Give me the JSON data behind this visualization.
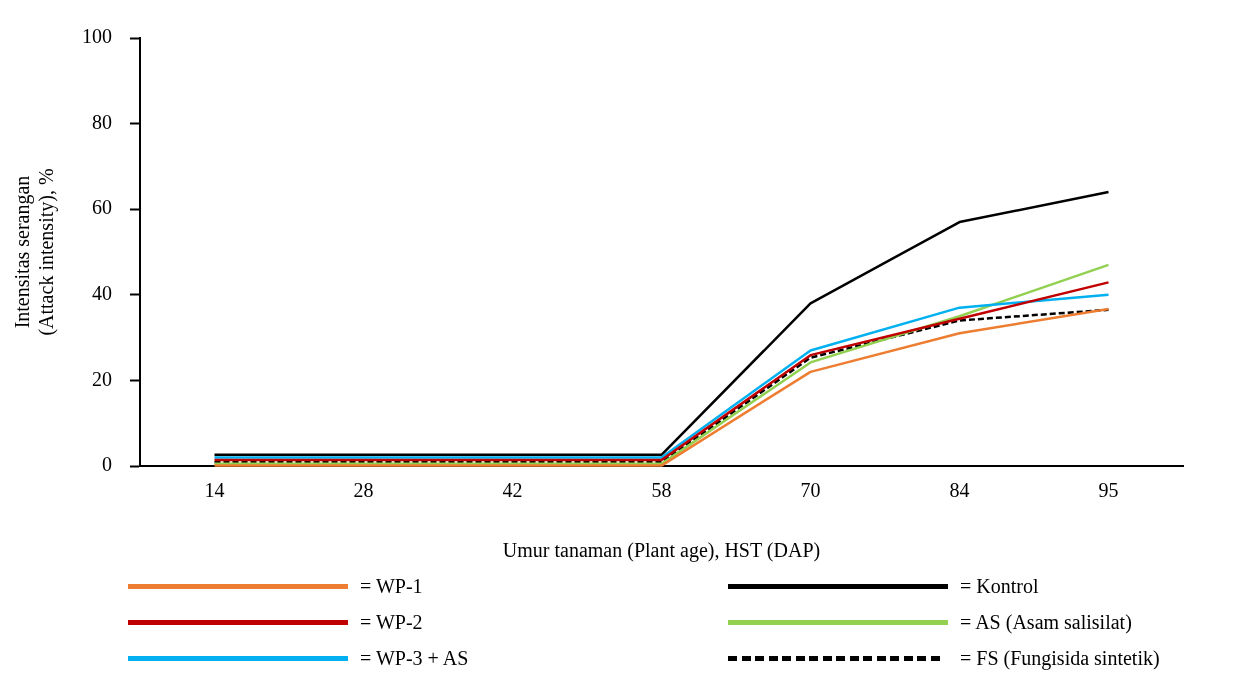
{
  "chart_data": {
    "type": "line",
    "xlabel": "Umur tanaman (Plant age), HST (DAP)",
    "ylabel": "Intensitas serangan\n(Attack intensity), %",
    "categories": [
      "14",
      "28",
      "42",
      "58",
      "70",
      "84",
      "95"
    ],
    "ylim": [
      0,
      100
    ],
    "yticks": [
      0,
      20,
      40,
      60,
      80,
      100
    ],
    "grid": false,
    "legend": "bottom",
    "marker": "none",
    "series": [
      {
        "name": "= WP-1",
        "color": "#ed7d31",
        "values": [
          0.1,
          0.1,
          0.1,
          0.1,
          22,
          31,
          36.7
        ]
      },
      {
        "name": "= WP-2",
        "color": "#c00000",
        "values": [
          1.4,
          1.4,
          1.4,
          1.4,
          25.9,
          34.4,
          42.9
        ]
      },
      {
        "name": "= WP-3 + AS",
        "color": "#00b0f0",
        "values": [
          2,
          2,
          2,
          2,
          27,
          37,
          40
        ]
      },
      {
        "name": "= Kontrol",
        "color": "#000000",
        "values": [
          2.6,
          2.6,
          2.6,
          2.6,
          38,
          57,
          64
        ]
      },
      {
        "name": "= AS (Asam salisilat)",
        "color": "#92d050",
        "values": [
          0.5,
          0.5,
          0.5,
          0.5,
          24.2,
          35,
          47
        ]
      },
      {
        "name": "= FS (Fungisida sintetik)",
        "color": "#000000",
        "line_style": "dashed",
        "values": [
          0.9,
          0.9,
          0.9,
          0.9,
          25.3,
          34,
          36.5
        ]
      }
    ]
  }
}
